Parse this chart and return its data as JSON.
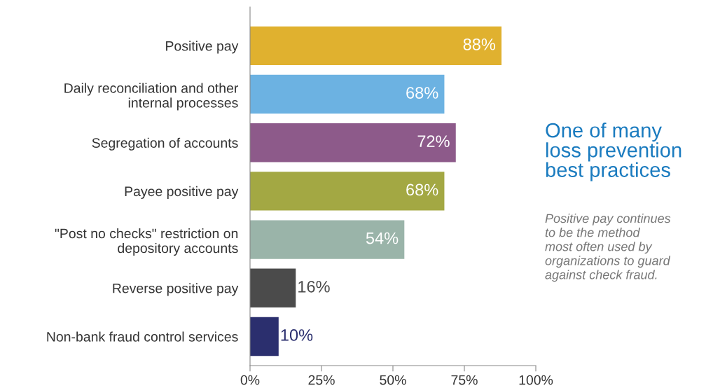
{
  "chart_data": {
    "type": "bar",
    "orientation": "horizontal",
    "title": "One of many\nloss prevention\nbest practices",
    "annotations": [
      "Positive pay continues\nto be the method\nmost often used by\norganizations to guard\nagainst check fraud."
    ],
    "categories": [
      "Positive pay",
      "Daily reconciliation and other\ninternal processes",
      "Segregation of accounts",
      "Payee positive pay",
      "\"Post no checks\" restriction on\ndepository accounts",
      "Reverse positive pay",
      "Non-bank fraud control services"
    ],
    "values": [
      88,
      68,
      72,
      68,
      54,
      16,
      10
    ],
    "value_labels": [
      "88%",
      "68%",
      "72%",
      "68%",
      "54%",
      "16%",
      "10%"
    ],
    "colors": [
      "#e0b12f",
      "#6cb2e2",
      "#8d5a8a",
      "#a3a843",
      "#9ab4a9",
      "#4b4b4b",
      "#2b2f6e"
    ],
    "xlim": [
      0,
      100
    ],
    "xticks": [
      {
        "value": 0,
        "label": "0%"
      },
      {
        "value": 25,
        "label": "25%"
      },
      {
        "value": 50,
        "label": "50%"
      },
      {
        "value": 75,
        "label": "75%"
      },
      {
        "value": 100,
        "label": "100%"
      }
    ],
    "grid": false,
    "legend": false
  }
}
